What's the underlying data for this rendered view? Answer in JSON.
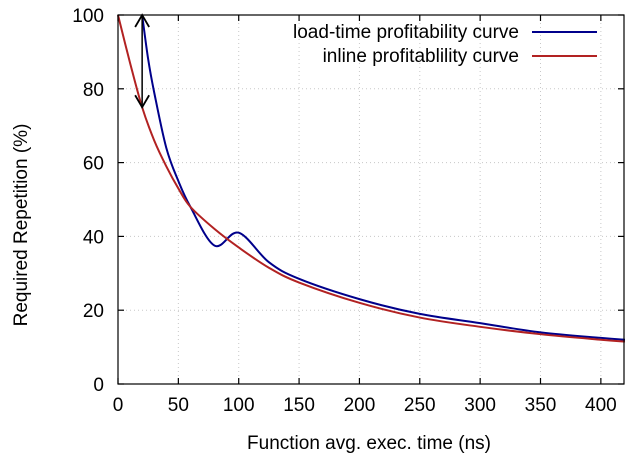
{
  "chart_data": {
    "type": "line",
    "title": "",
    "xlabel": "Function avg. exec. time (ns)",
    "ylabel": "Required Repetition (%)",
    "xlim": [
      0,
      420
    ],
    "ylim": [
      0,
      100
    ],
    "x_ticks": [
      0,
      50,
      100,
      150,
      200,
      250,
      300,
      350,
      400
    ],
    "y_ticks": [
      0,
      20,
      40,
      60,
      80,
      100
    ],
    "grid": true,
    "legend_position": "top-right",
    "series": [
      {
        "name": "load-time profitability curve",
        "color": "#00008b",
        "x": [
          20,
          25,
          30,
          40,
          50,
          60,
          80,
          100,
          125,
          150,
          200,
          250,
          300,
          350,
          400,
          420
        ],
        "y": [
          100,
          88,
          79,
          64,
          55,
          48,
          37.5,
          41,
          33,
          28.5,
          23,
          19,
          16.5,
          14,
          12.5,
          12
        ]
      },
      {
        "name": "inline profitablility curve",
        "color": "#b22222",
        "x": [
          0,
          10,
          20,
          30,
          40,
          50,
          60,
          80,
          100,
          125,
          150,
          200,
          250,
          300,
          350,
          400,
          420
        ],
        "y": [
          100,
          87,
          75,
          66,
          59,
          53,
          48,
          42,
          37,
          31.5,
          27.5,
          22,
          18,
          15.5,
          13.5,
          12,
          11.5
        ]
      }
    ],
    "annotations": [
      {
        "type": "double-arrow",
        "x": 20,
        "y_from": 100,
        "y_to": 75
      }
    ]
  }
}
